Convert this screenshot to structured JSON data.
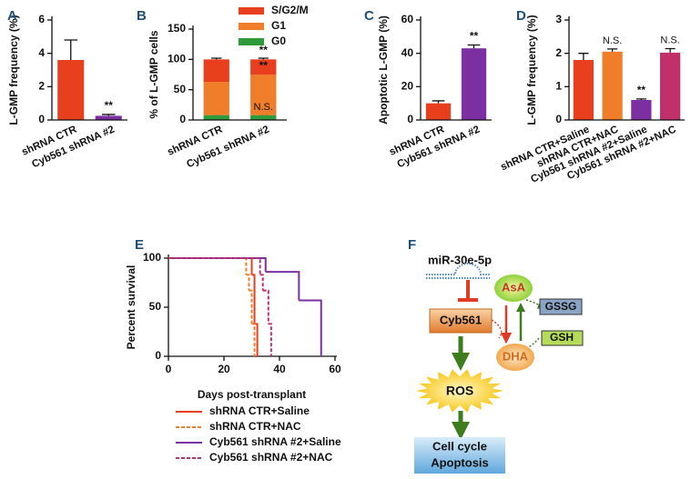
{
  "chart_data": [
    {
      "type": "bar",
      "letter": "A",
      "ylabel": "L-GMP frequency (%)",
      "categories": [
        "shRNA CTR",
        "Cyb561 shRNA #2"
      ],
      "values": [
        3.6,
        0.25
      ],
      "errors": [
        1.2,
        0.08
      ],
      "colors": [
        "#e8401f",
        "#7b2fa0"
      ],
      "ylim": [
        0,
        6
      ],
      "yticks": [
        0,
        2,
        4,
        6
      ],
      "annotations": [
        {
          "text": "**",
          "category": "Cyb561 shRNA #2"
        }
      ]
    },
    {
      "type": "stacked_bar",
      "letter": "B",
      "ylabel": "% of L-GMP cells",
      "categories": [
        "shRNA CTR",
        "Cyb561 shRNA #2"
      ],
      "series": [
        {
          "name": "G0",
          "color": "#2e9a3a",
          "values": [
            8,
            8
          ],
          "errors": [
            1,
            1
          ]
        },
        {
          "name": "G1",
          "color": "#f07d2a",
          "values": [
            55,
            67
          ],
          "errors": [
            1.5,
            2
          ]
        },
        {
          "name": "S/G2/M",
          "color": "#e8401f",
          "values": [
            37,
            25
          ],
          "errors": [
            2,
            2
          ]
        }
      ],
      "ylim": [
        0,
        150
      ],
      "yticks": [
        0,
        50,
        100,
        150
      ],
      "annotations": [
        {
          "text": "**",
          "category": "Cyb561 shRNA #2",
          "series": "S/G2/M"
        },
        {
          "text": "**",
          "category": "Cyb561 shRNA #2",
          "series": "G1"
        },
        {
          "text": "N.S.",
          "category": "Cyb561 shRNA #2",
          "series": "G0"
        }
      ]
    },
    {
      "type": "bar",
      "letter": "C",
      "ylabel": "Apoptotic L-GMP (%)",
      "categories": [
        "shRNA CTR",
        "Cyb561 shRNA #2"
      ],
      "values": [
        10,
        43
      ],
      "errors": [
        1.5,
        2
      ],
      "colors": [
        "#e8401f",
        "#7b2fa0"
      ],
      "ylim": [
        0,
        60
      ],
      "yticks": [
        0,
        20,
        40,
        60
      ],
      "annotations": [
        {
          "text": "**",
          "category": "Cyb561 shRNA #2"
        }
      ]
    },
    {
      "type": "bar",
      "letter": "D",
      "ylabel": "L-GMP frequency (%)",
      "categories": [
        "shRNA CTR+Saline",
        "shRNA CTR+NAC",
        "Cyb561 shRNA #2+Saline",
        "Cyb561 shRNA #2+NAC"
      ],
      "values": [
        1.8,
        2.05,
        0.6,
        2.02
      ],
      "errors": [
        0.2,
        0.08,
        0.03,
        0.12
      ],
      "colors": [
        "#e8401f",
        "#f07d2a",
        "#7b2fa0",
        "#c2306a"
      ],
      "ylim": [
        0,
        3
      ],
      "yticks": [
        0,
        1,
        2,
        3
      ],
      "annotations": [
        {
          "text": "N.S.",
          "category": "shRNA CTR+NAC"
        },
        {
          "text": "**",
          "category": "Cyb561 shRNA #2+Saline"
        },
        {
          "text": "N.S.",
          "category": "Cyb561 shRNA #2+NAC"
        }
      ]
    },
    {
      "type": "survival",
      "letter": "E",
      "xlabel": "Days post-transplant",
      "ylabel": "Percent survival",
      "xlim": [
        0,
        60
      ],
      "xticks": [
        0,
        20,
        40,
        60
      ],
      "ylim": [
        0,
        100
      ],
      "yticks": [
        0,
        50,
        100
      ],
      "series": [
        {
          "name": "shRNA CTR+Saline",
          "color": "#e8401f",
          "dashed": false,
          "x": [
            0,
            30,
            31,
            32
          ],
          "values": [
            100,
            83,
            33,
            0
          ]
        },
        {
          "name": "shRNA CTR+NAC",
          "color": "#f07d2a",
          "dashed": true,
          "x": [
            0,
            28,
            29,
            30,
            31
          ],
          "values": [
            100,
            83,
            67,
            33,
            0
          ]
        },
        {
          "name": "Cyb561 shRNA #2+Saline",
          "color": "#7b2fa0",
          "dashed": false,
          "x": [
            0,
            35,
            47,
            55
          ],
          "values": [
            100,
            86,
            57,
            0
          ]
        },
        {
          "name": "Cyb561 shRNA #2+NAC",
          "color": "#c2306a",
          "dashed": true,
          "x": [
            0,
            33,
            34,
            36,
            37
          ],
          "values": [
            100,
            83,
            67,
            33,
            0
          ]
        }
      ]
    }
  ],
  "diagram": {
    "letter": "F",
    "mirna": "miR-30e-5p",
    "target": "Cyb561",
    "asa": "AsA",
    "dha": "DHA",
    "gssg": "GSSG",
    "gsh": "GSH",
    "ros": "ROS",
    "outcome": [
      "Cell cycle",
      "Apoptosis"
    ]
  }
}
